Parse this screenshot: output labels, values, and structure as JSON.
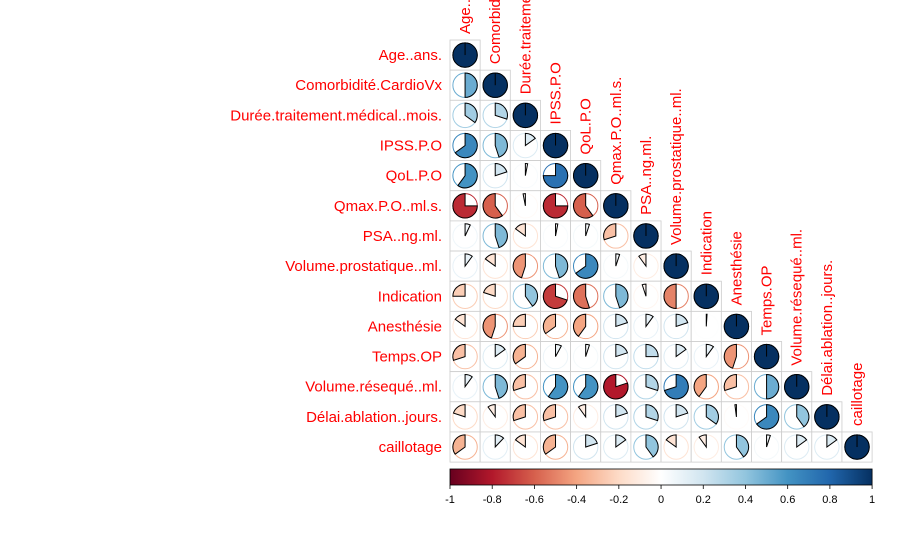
{
  "chart_data": {
    "type": "heatmap",
    "style": "pie-correlogram-lower-triangle",
    "variables": [
      "Age..ans.",
      "Comorbidité.CardioVx",
      "Durée.traitement.médical..mois.",
      "IPSS.P.O",
      "QoL.P.O",
      "Qmax.P.O..ml.s.",
      "PSA..ng.ml.",
      "Volume.prostatique..ml.",
      "Indication",
      "Anesthésie",
      "Temps.OP",
      "Volume.résequé..ml.",
      "Délai.ablation..jours.",
      "caillotage"
    ],
    "column_labels": [
      "Age..ans.",
      "Comorbidité.CardioVx",
      "Durée.traitement.médical..mois.",
      "IPSS.P.O",
      "QoL.P.O",
      "Qmax.P.O..ml.s.",
      "PSA..ng.ml.",
      "Volume.prostatique..ml.",
      "Indication",
      "Anesthésie",
      "Temps.OP",
      "Volume.résequé..ml.",
      "Délai.ablation..jours.",
      "caillotage"
    ],
    "correlations": [
      [
        1
      ],
      [
        0.5,
        1
      ],
      [
        0.35,
        0.3,
        1
      ],
      [
        0.65,
        0.45,
        0.15,
        1
      ],
      [
        0.6,
        0.2,
        0.03,
        0.75,
        1
      ],
      [
        -0.75,
        -0.6,
        -0.03,
        -0.75,
        -0.6,
        1
      ],
      [
        0.07,
        0.45,
        -0.15,
        0.03,
        0.05,
        -0.3,
        1
      ],
      [
        0.1,
        -0.15,
        -0.45,
        0.45,
        0.65,
        0.05,
        -0.1,
        1
      ],
      [
        -0.25,
        -0.2,
        0.4,
        -0.7,
        -0.55,
        0.45,
        -0.05,
        -0.5,
        1
      ],
      [
        -0.15,
        -0.45,
        -0.25,
        -0.35,
        -0.4,
        0.2,
        0.1,
        0.2,
        0.01,
        1
      ],
      [
        -0.3,
        0.15,
        -0.35,
        0.08,
        0.05,
        0.2,
        0.25,
        0.15,
        0.1,
        -0.45,
        1
      ],
      [
        0.1,
        0.45,
        -0.3,
        0.6,
        0.6,
        -0.8,
        0.3,
        0.7,
        -0.4,
        -0.3,
        0.5,
        1
      ],
      [
        -0.2,
        -0.1,
        -0.3,
        -0.3,
        -0.1,
        0.2,
        0.3,
        0.2,
        0.35,
        -0.02,
        0.65,
        0.4,
        1
      ],
      [
        -0.35,
        0.12,
        -0.15,
        -0.35,
        0.2,
        0.15,
        0.4,
        -0.15,
        -0.1,
        0.4,
        0.05,
        0.15,
        0.15,
        1
      ]
    ],
    "color_scale": {
      "min": -1,
      "max": 1,
      "stops": [
        "#67001F",
        "#B2182B",
        "#D6604D",
        "#F4A582",
        "#FDDBC7",
        "#FFFFFF",
        "#D1E5F0",
        "#92C5DE",
        "#4393C3",
        "#2166AC",
        "#053061"
      ],
      "tick_labels": [
        "-1",
        "-0.8",
        "-0.6",
        "-0.4",
        "-0.2",
        "0",
        "0.2",
        "0.4",
        "0.6",
        "0.8",
        "1"
      ]
    },
    "label_color": "#FF0000",
    "legend_position": "bottom"
  }
}
